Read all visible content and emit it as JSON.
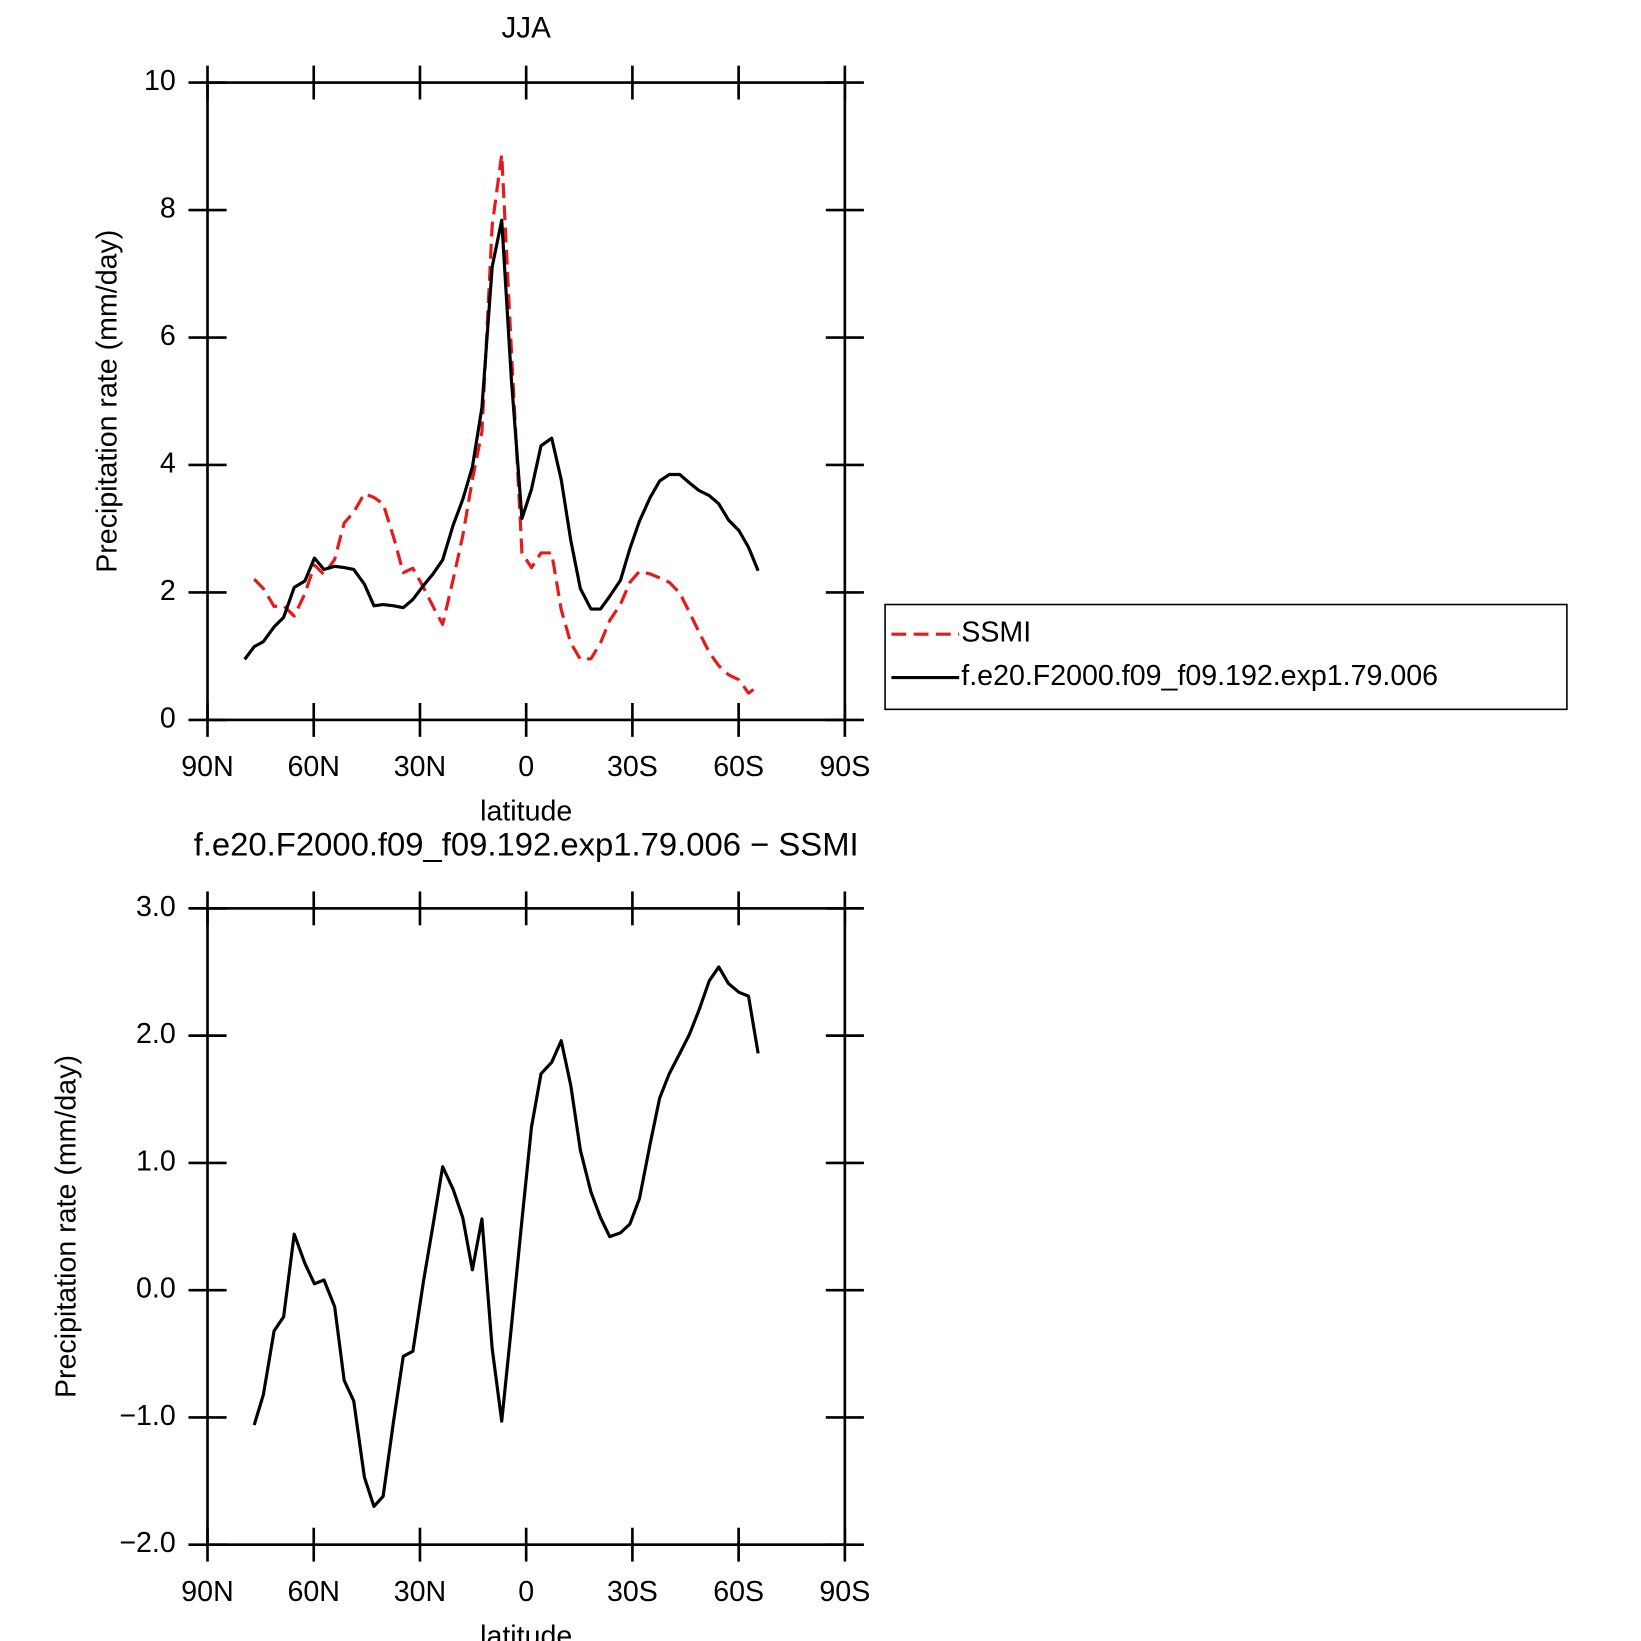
{
  "chart_data": [
    {
      "type": "line",
      "title": "JJA",
      "x_label": "latitude",
      "y_label": "Precipitation rate (mm/day)",
      "xlim": [
        90,
        -90
      ],
      "xticks": [
        {
          "value": 90,
          "label": "90N"
        },
        {
          "value": 60,
          "label": "60N"
        },
        {
          "value": 30,
          "label": "30N"
        },
        0,
        {
          "value": -30,
          "label": "30S"
        },
        {
          "value": -60,
          "label": "60S"
        },
        {
          "value": -90,
          "label": "90S"
        }
      ],
      "ylim": [
        0,
        10
      ],
      "yticks": [
        0,
        2,
        4,
        6,
        8,
        10
      ],
      "legend": "outside-right",
      "x": [
        79.5,
        76.8,
        74.2,
        71.2,
        68.5,
        65.5,
        62.5,
        59.8,
        57.1,
        54.1,
        51.4,
        48.7,
        45.7,
        43.0,
        40.4,
        37.4,
        34.7,
        32.0,
        29.0,
        26.3,
        23.6,
        20.6,
        17.9,
        15.2,
        12.5,
        9.6,
        6.9,
        4.2,
        1.2,
        -1.5,
        -4.2,
        -7.2,
        -9.9,
        -12.6,
        -15.3,
        -18.3,
        -21.0,
        -23.6,
        -26.6,
        -29.3,
        -32.0,
        -35.0,
        -37.7,
        -40.4,
        -43.4,
        -46.1,
        -48.8,
        -51.7,
        -54.4,
        -57.1,
        -60.1,
        -62.8,
        -65.5
      ],
      "series": [
        {
          "name": "SSMI",
          "color": "#e41a1c",
          "line_style": "dashed",
          "values": [
            null,
            2.21,
            2.06,
            1.78,
            1.79,
            1.63,
            1.98,
            2.43,
            2.28,
            2.52,
            3.09,
            3.26,
            3.55,
            3.49,
            3.39,
            2.86,
            2.31,
            2.38,
            2.08,
            1.78,
            1.5,
            2.21,
            2.89,
            3.77,
            4.52,
            7.76,
            8.87,
            5.81,
            2.62,
            2.39,
            2.62,
            2.62,
            1.73,
            1.21,
            0.95,
            0.96,
            1.21,
            1.56,
            1.81,
            2.16,
            2.33,
            2.29,
            2.23,
            2.16,
            1.99,
            1.69,
            1.38,
            1.06,
            0.85,
            0.71,
            0.63,
            0.42,
            0.53
          ]
        },
        {
          "name": "f.e20.F2000.f09_f09.192.exp1.79.006",
          "color": "#000000",
          "line_style": "solid",
          "values": [
            0.95,
            1.15,
            1.23,
            1.46,
            1.61,
            2.08,
            2.18,
            2.54,
            2.36,
            2.41,
            2.39,
            2.36,
            2.13,
            1.79,
            1.81,
            1.79,
            1.76,
            1.89,
            2.11,
            2.29,
            2.51,
            3.06,
            3.46,
            3.97,
            4.9,
            7.11,
            7.84,
            5.35,
            3.16,
            3.62,
            4.3,
            4.42,
            3.77,
            2.82,
            2.06,
            1.74,
            1.74,
            1.94,
            2.19,
            2.69,
            3.12,
            3.49,
            3.75,
            3.85,
            3.85,
            3.72,
            3.6,
            3.52,
            3.39,
            3.14,
            2.97,
            2.71,
            2.34
          ]
        }
      ]
    },
    {
      "type": "line",
      "title": "f.e20.F2000.f09_f09.192.exp1.79.006 − SSMI",
      "x_label": "latitude",
      "y_label": "Precipitation rate (mm/day)",
      "xlim": [
        90,
        -90
      ],
      "xticks": [
        {
          "value": 90,
          "label": "90N"
        },
        {
          "value": 60,
          "label": "60N"
        },
        {
          "value": 30,
          "label": "30N"
        },
        0,
        {
          "value": -30,
          "label": "30S"
        },
        {
          "value": -60,
          "label": "60S"
        },
        {
          "value": -90,
          "label": "90S"
        }
      ],
      "ylim": [
        -2,
        3
      ],
      "yticks": [
        {
          "value": -2,
          "label": "−2.0"
        },
        {
          "value": -1,
          "label": "−1.0"
        },
        {
          "value": 0,
          "label": "0.0"
        },
        {
          "value": 1,
          "label": "1.0"
        },
        {
          "value": 2,
          "label": "2.0"
        },
        {
          "value": 3,
          "label": "3.0"
        }
      ],
      "x": [
        76.8,
        74.2,
        71.2,
        68.5,
        65.5,
        62.5,
        59.8,
        57.1,
        54.1,
        51.4,
        48.7,
        45.7,
        43.0,
        40.4,
        37.4,
        34.7,
        32.0,
        29.0,
        26.3,
        23.6,
        20.6,
        17.9,
        15.2,
        12.5,
        9.6,
        6.9,
        4.2,
        1.2,
        -1.5,
        -4.2,
        -7.2,
        -9.9,
        -12.6,
        -15.3,
        -18.3,
        -21.0,
        -23.6,
        -26.6,
        -29.3,
        -32.0,
        -35.0,
        -37.7,
        -40.4,
        -43.4,
        -46.1,
        -48.8,
        -51.7,
        -54.4,
        -57.1,
        -60.1,
        -62.8,
        -65.5
      ],
      "series": [
        {
          "color": "#000000",
          "line_style": "solid",
          "values": [
            -1.06,
            -0.82,
            -0.32,
            -0.21,
            0.44,
            0.21,
            0.05,
            0.08,
            -0.13,
            -0.71,
            -0.87,
            -1.47,
            -1.7,
            -1.62,
            -1.02,
            -0.52,
            -0.48,
            0.07,
            0.51,
            0.97,
            0.79,
            0.57,
            0.16,
            0.56,
            -0.46,
            -1.03,
            -0.29,
            0.55,
            1.28,
            1.7,
            1.79,
            1.96,
            1.61,
            1.1,
            0.77,
            0.57,
            0.42,
            0.45,
            0.52,
            0.72,
            1.15,
            1.51,
            1.7,
            1.86,
            2.01,
            2.2,
            2.43,
            2.54,
            2.41,
            2.34,
            2.31,
            1.86
          ]
        }
      ]
    }
  ]
}
